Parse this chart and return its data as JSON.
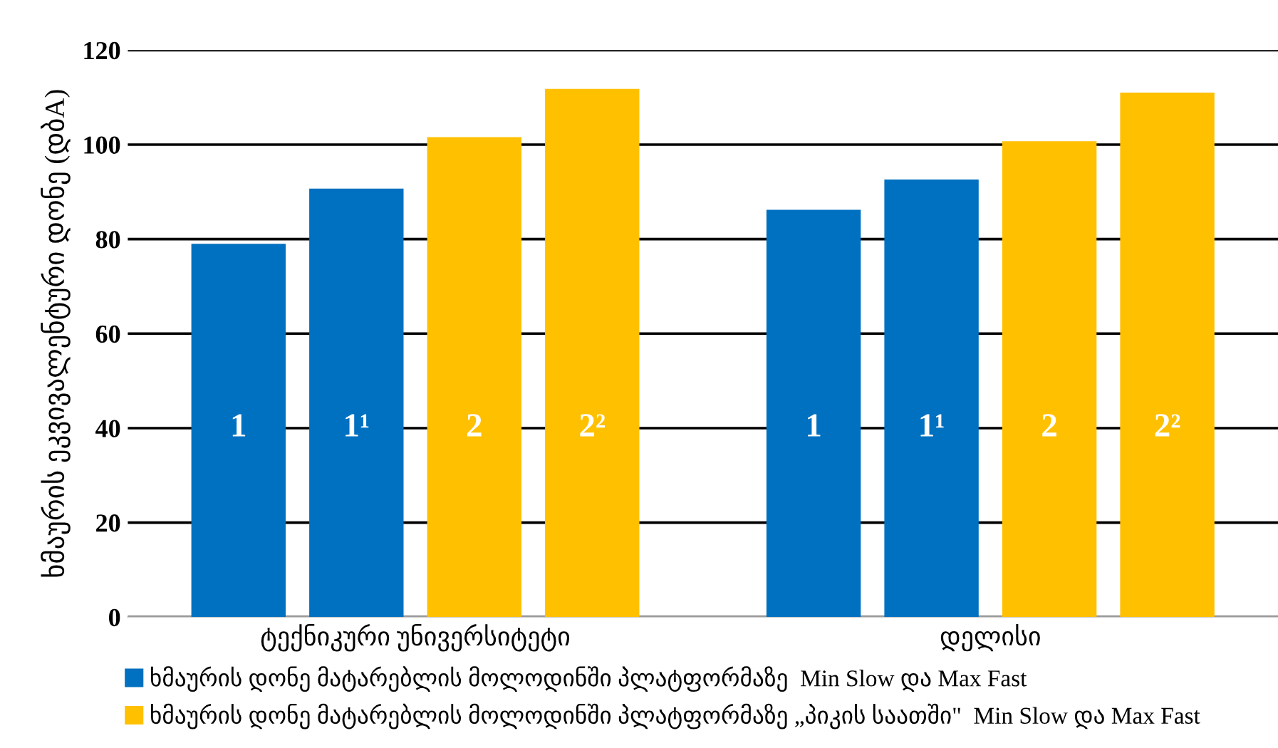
{
  "chart_data": {
    "type": "bar",
    "ylabel": "ხმაურის ეკვივალენტური დონე (დბA)",
    "categories": [
      "ტექნიკური უნივერსიტეტი",
      "დელისი"
    ],
    "series": [
      {
        "name": "ხმაურის დონე მატარებლის მოლოდინში პლატფორმაზე  Min Slow და Max Fast",
        "color": "#0070c0",
        "values": [
          79,
          86.2
        ]
      },
      {
        "color": "#0070c0",
        "values": [
          90.7,
          92.6
        ]
      },
      {
        "name": "ხმაურის დონე მატარებლის მოლოდინში პლატფორმაზე „პიკის საათში\"  Min Slow და Max Fast",
        "color": "#ffc000",
        "values": [
          101.6,
          100.7
        ]
      },
      {
        "color": "#ffc000",
        "values": [
          111.8,
          111
        ]
      }
    ],
    "annotations": [
      "1",
      "1¹",
      "2",
      "2²",
      "1",
      "1¹",
      "2",
      "2²"
    ],
    "ylim": [
      0,
      120
    ],
    "yticks": [
      0,
      20,
      40,
      60,
      80,
      100,
      120
    ],
    "grid": "y",
    "legend": "bottom left"
  }
}
